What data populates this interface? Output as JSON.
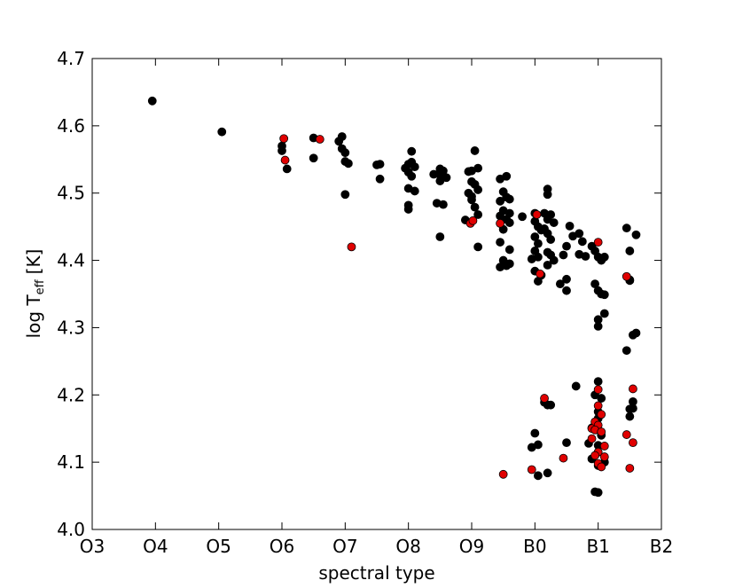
{
  "chart_data": {
    "type": "scatter",
    "xlabel": "spectral type",
    "ylabel_main": "log T",
    "ylabel_sub": "eff",
    "ylabel_unit": "[K]",
    "x_ticks": [
      {
        "value": 3,
        "label": "O3"
      },
      {
        "value": 4,
        "label": "O4"
      },
      {
        "value": 5,
        "label": "O5"
      },
      {
        "value": 6,
        "label": "O6"
      },
      {
        "value": 7,
        "label": "O7"
      },
      {
        "value": 8,
        "label": "O8"
      },
      {
        "value": 9,
        "label": "O9"
      },
      {
        "value": 10,
        "label": "B0"
      },
      {
        "value": 11,
        "label": "B1"
      },
      {
        "value": 12,
        "label": "B2"
      }
    ],
    "y_ticks": [
      "4.0",
      "4.1",
      "4.2",
      "4.3",
      "4.4",
      "4.5",
      "4.6",
      "4.7"
    ],
    "xlim": [
      3,
      12
    ],
    "ylim": [
      4.0,
      4.7
    ],
    "grid": false,
    "series": [
      {
        "color": "#000000",
        "points": [
          [
            3.95,
            4.637
          ],
          [
            5.05,
            4.591
          ],
          [
            6.0,
            4.57
          ],
          [
            6.0,
            4.563
          ],
          [
            6.08,
            4.536
          ],
          [
            6.5,
            4.582
          ],
          [
            6.5,
            4.552
          ],
          [
            6.95,
            4.584
          ],
          [
            6.9,
            4.577
          ],
          [
            6.95,
            4.566
          ],
          [
            7.0,
            4.56
          ],
          [
            7.0,
            4.547
          ],
          [
            7.05,
            4.544
          ],
          [
            7.0,
            4.498
          ],
          [
            7.5,
            4.542
          ],
          [
            7.55,
            4.543
          ],
          [
            7.55,
            4.521
          ],
          [
            7.95,
            4.537
          ],
          [
            8.0,
            4.543
          ],
          [
            8.05,
            4.562
          ],
          [
            8.05,
            4.546
          ],
          [
            8.1,
            4.539
          ],
          [
            8.0,
            4.531
          ],
          [
            8.05,
            4.525
          ],
          [
            8.0,
            4.507
          ],
          [
            8.1,
            4.503
          ],
          [
            8.0,
            4.482
          ],
          [
            8.0,
            4.476
          ],
          [
            8.4,
            4.528
          ],
          [
            8.5,
            4.536
          ],
          [
            8.55,
            4.533
          ],
          [
            8.5,
            4.527
          ],
          [
            8.6,
            4.523
          ],
          [
            8.5,
            4.518
          ],
          [
            8.45,
            4.485
          ],
          [
            8.55,
            4.483
          ],
          [
            8.5,
            4.435
          ],
          [
            8.95,
            4.532
          ],
          [
            9.0,
            4.533
          ],
          [
            9.05,
            4.563
          ],
          [
            9.1,
            4.537
          ],
          [
            9.0,
            4.517
          ],
          [
            9.05,
            4.513
          ],
          [
            9.1,
            4.505
          ],
          [
            8.95,
            4.5
          ],
          [
            9.0,
            4.495
          ],
          [
            9.0,
            4.49
          ],
          [
            9.05,
            4.479
          ],
          [
            9.1,
            4.468
          ],
          [
            8.9,
            4.46
          ],
          [
            9.1,
            4.42
          ],
          [
            9.45,
            4.521
          ],
          [
            9.55,
            4.525
          ],
          [
            9.5,
            4.502
          ],
          [
            9.55,
            4.494
          ],
          [
            9.45,
            4.488
          ],
          [
            9.6,
            4.491
          ],
          [
            9.5,
            4.474
          ],
          [
            9.6,
            4.47
          ],
          [
            9.45,
            4.466
          ],
          [
            9.55,
            4.461
          ],
          [
            9.6,
            4.456
          ],
          [
            9.5,
            4.446
          ],
          [
            9.45,
            4.427
          ],
          [
            9.6,
            4.416
          ],
          [
            9.5,
            4.4
          ],
          [
            9.55,
            4.392
          ],
          [
            9.45,
            4.39
          ],
          [
            9.6,
            4.395
          ],
          [
            9.8,
            4.465
          ],
          [
            10.0,
            4.47
          ],
          [
            10.0,
            4.458
          ],
          [
            10.05,
            4.45
          ],
          [
            10.1,
            4.445
          ],
          [
            10.0,
            4.435
          ],
          [
            10.05,
            4.425
          ],
          [
            10.0,
            4.414
          ],
          [
            10.05,
            4.405
          ],
          [
            9.95,
            4.402
          ],
          [
            10.0,
            4.384
          ],
          [
            10.1,
            4.378
          ],
          [
            10.05,
            4.369
          ],
          [
            10.2,
            4.506
          ],
          [
            10.2,
            4.498
          ],
          [
            10.15,
            4.47
          ],
          [
            10.25,
            4.468
          ],
          [
            10.2,
            4.461
          ],
          [
            10.3,
            4.456
          ],
          [
            10.15,
            4.447
          ],
          [
            10.2,
            4.44
          ],
          [
            10.25,
            4.431
          ],
          [
            10.2,
            4.412
          ],
          [
            10.25,
            4.408
          ],
          [
            10.3,
            4.4
          ],
          [
            10.2,
            4.393
          ],
          [
            10.55,
            4.451
          ],
          [
            10.6,
            4.436
          ],
          [
            10.7,
            4.44
          ],
          [
            10.75,
            4.428
          ],
          [
            10.5,
            4.421
          ],
          [
            10.7,
            4.409
          ],
          [
            10.8,
            4.406
          ],
          [
            10.45,
            4.408
          ],
          [
            10.4,
            4.365
          ],
          [
            10.5,
            4.355
          ],
          [
            10.5,
            4.372
          ],
          [
            10.9,
            4.421
          ],
          [
            10.95,
            4.414
          ],
          [
            11.0,
            4.405
          ],
          [
            11.05,
            4.4
          ],
          [
            11.1,
            4.405
          ],
          [
            10.95,
            4.365
          ],
          [
            11.0,
            4.355
          ],
          [
            11.05,
            4.35
          ],
          [
            11.1,
            4.349
          ],
          [
            11.0,
            4.312
          ],
          [
            11.0,
            4.302
          ],
          [
            11.1,
            4.321
          ],
          [
            11.45,
            4.448
          ],
          [
            11.5,
            4.414
          ],
          [
            11.6,
            4.438
          ],
          [
            11.5,
            4.371
          ],
          [
            11.5,
            4.37
          ],
          [
            11.55,
            4.289
          ],
          [
            11.6,
            4.292
          ],
          [
            11.45,
            4.266
          ],
          [
            10.65,
            4.213
          ],
          [
            11.0,
            4.22
          ],
          [
            10.95,
            4.2
          ],
          [
            11.05,
            4.195
          ],
          [
            11.0,
            4.175
          ],
          [
            11.0,
            4.165
          ],
          [
            10.9,
            4.151
          ],
          [
            11.05,
            4.14
          ],
          [
            10.85,
            4.128
          ],
          [
            11.0,
            4.125
          ],
          [
            10.9,
            4.105
          ],
          [
            11.0,
            4.095
          ],
          [
            11.1,
            4.1
          ],
          [
            10.95,
            4.056
          ],
          [
            11.0,
            4.055
          ],
          [
            11.55,
            4.19
          ],
          [
            11.5,
            4.179
          ],
          [
            11.55,
            4.18
          ],
          [
            11.5,
            4.168
          ],
          [
            10.15,
            4.189
          ],
          [
            10.2,
            4.185
          ],
          [
            10.25,
            4.185
          ],
          [
            10.0,
            4.143
          ],
          [
            10.05,
            4.126
          ],
          [
            9.95,
            4.122
          ],
          [
            10.05,
            4.08
          ],
          [
            10.2,
            4.084
          ],
          [
            10.5,
            4.129
          ]
        ]
      },
      {
        "color": "#e00000",
        "points": [
          [
            6.03,
            4.581
          ],
          [
            6.05,
            4.549
          ],
          [
            6.6,
            4.58
          ],
          [
            7.1,
            4.42
          ],
          [
            8.98,
            4.455
          ],
          [
            9.02,
            4.459
          ],
          [
            9.45,
            4.455
          ],
          [
            10.03,
            4.468
          ],
          [
            10.08,
            4.38
          ],
          [
            11.0,
            4.427
          ],
          [
            11.45,
            4.376
          ],
          [
            10.15,
            4.195
          ],
          [
            9.5,
            4.082
          ],
          [
            9.95,
            4.089
          ],
          [
            10.45,
            4.106
          ],
          [
            11.0,
            4.208
          ],
          [
            11.0,
            4.184
          ],
          [
            11.05,
            4.171
          ],
          [
            10.95,
            4.16
          ],
          [
            11.0,
            4.155
          ],
          [
            10.9,
            4.15
          ],
          [
            10.95,
            4.148
          ],
          [
            11.05,
            4.145
          ],
          [
            10.9,
            4.135
          ],
          [
            11.1,
            4.124
          ],
          [
            11.0,
            4.115
          ],
          [
            10.95,
            4.11
          ],
          [
            11.1,
            4.108
          ],
          [
            11.0,
            4.098
          ],
          [
            11.05,
            4.093
          ],
          [
            11.55,
            4.209
          ],
          [
            11.45,
            4.141
          ],
          [
            11.55,
            4.129
          ],
          [
            11.5,
            4.091
          ]
        ]
      }
    ]
  }
}
